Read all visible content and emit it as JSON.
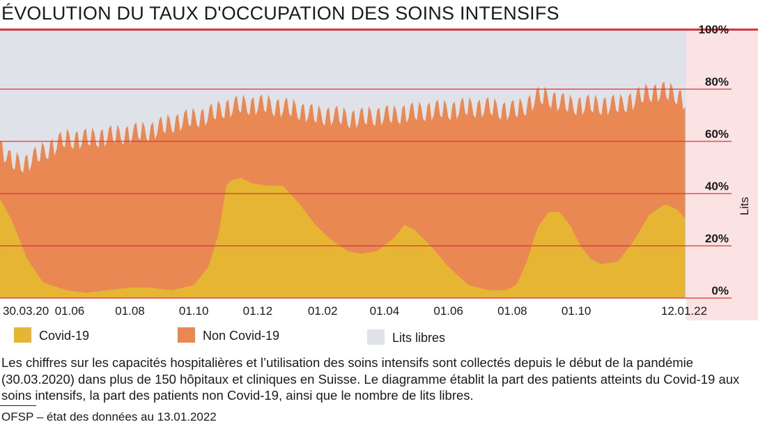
{
  "title": "ÉVOLUTION DU TAUX D'OCCUPATION DES SOINS INTENSIFS",
  "colors": {
    "accent_red": "#d9333c",
    "covid": "#e6b533",
    "non_covid": "#ea8854",
    "free_beds": "#dfe3e9",
    "panel_bg": "#fbe3e4"
  },
  "legend": [
    {
      "label": "Covid-19",
      "color": "#e6b533"
    },
    {
      "label": "Non Covid-19",
      "color": "#ea8854"
    },
    {
      "label": "Lits libres",
      "color": "#dfe3e9"
    }
  ],
  "caption": "Les chiffres sur les capacités hospitalières et l’utilisation des soins intensifs sont collectés depuis le début de la pandémie (30.03.2020) dans plus de 150 hôpitaux et cliniques en Suisse. Le diagramme établit la part des patients atteints du Covid-19 aux soins intensifs, la part des patients non Covid-19, ainsi que le nombre de lits libres.",
  "source": "OFSP – état des données au 13.01.2022",
  "chart_data": {
    "type": "area",
    "stacked": true,
    "ylabel": "Lits",
    "ylim": [
      0,
      100
    ],
    "yticks": [
      0,
      20,
      40,
      60,
      80,
      100
    ],
    "ytick_labels": [
      "0%",
      "20%",
      "40%",
      "60%",
      "80%",
      "100%"
    ],
    "gridlines_at": [
      20,
      40,
      60,
      80
    ],
    "xlim": [
      "2020-03-30",
      "2022-01-14"
    ],
    "xtick_labels": [
      {
        "date": "2020-03-30",
        "label": "30.03.20"
      },
      {
        "date": "2020-06-01",
        "label": "01.06"
      },
      {
        "date": "2020-08-01",
        "label": "01.08"
      },
      {
        "date": "2020-10-01",
        "label": "01.10"
      },
      {
        "date": "2020-12-01",
        "label": "01.12"
      },
      {
        "date": "2021-02-01",
        "label": "01.02"
      },
      {
        "date": "2021-04-01",
        "label": "01.04"
      },
      {
        "date": "2021-06-01",
        "label": "01.06"
      },
      {
        "date": "2021-08-01",
        "label": "01.08"
      },
      {
        "date": "2021-10-01",
        "label": "01.10"
      },
      {
        "date": "2022-01-12",
        "label": "12.01.22"
      }
    ],
    "series": [
      {
        "name": "Covid-19",
        "points": [
          [
            "2020-03-30",
            38
          ],
          [
            "2020-04-10",
            30
          ],
          [
            "2020-04-25",
            15
          ],
          [
            "2020-05-10",
            6
          ],
          [
            "2020-06-01",
            3
          ],
          [
            "2020-06-20",
            2
          ],
          [
            "2020-07-10",
            3
          ],
          [
            "2020-08-01",
            4
          ],
          [
            "2020-08-20",
            4
          ],
          [
            "2020-09-10",
            3
          ],
          [
            "2020-10-01",
            5
          ],
          [
            "2020-10-15",
            12
          ],
          [
            "2020-10-25",
            25
          ],
          [
            "2020-11-01",
            43
          ],
          [
            "2020-11-05",
            45
          ],
          [
            "2020-11-15",
            46
          ],
          [
            "2020-11-25",
            44
          ],
          [
            "2020-12-10",
            43
          ],
          [
            "2020-12-25",
            43
          ],
          [
            "2021-01-10",
            36
          ],
          [
            "2021-01-25",
            28
          ],
          [
            "2021-02-10",
            22
          ],
          [
            "2021-02-25",
            18
          ],
          [
            "2021-03-10",
            17
          ],
          [
            "2021-03-25",
            18
          ],
          [
            "2021-04-10",
            23
          ],
          [
            "2021-04-20",
            28
          ],
          [
            "2021-04-30",
            26
          ],
          [
            "2021-05-15",
            20
          ],
          [
            "2021-06-01",
            12
          ],
          [
            "2021-06-20",
            5
          ],
          [
            "2021-07-10",
            3
          ],
          [
            "2021-07-25",
            3
          ],
          [
            "2021-08-05",
            5
          ],
          [
            "2021-08-15",
            14
          ],
          [
            "2021-08-25",
            27
          ],
          [
            "2021-09-05",
            33
          ],
          [
            "2021-09-15",
            33
          ],
          [
            "2021-09-25",
            28
          ],
          [
            "2021-10-05",
            20
          ],
          [
            "2021-10-15",
            15
          ],
          [
            "2021-10-25",
            13
          ],
          [
            "2021-11-10",
            14
          ],
          [
            "2021-11-25",
            22
          ],
          [
            "2021-12-10",
            32
          ],
          [
            "2021-12-25",
            36
          ],
          [
            "2022-01-05",
            34
          ],
          [
            "2022-01-14",
            30
          ]
        ]
      },
      {
        "name": "Non Covid-19",
        "points": [
          [
            "2020-03-30",
            20
          ],
          [
            "2020-04-10",
            22
          ],
          [
            "2020-04-25",
            37
          ],
          [
            "2020-05-10",
            50
          ],
          [
            "2020-06-01",
            58
          ],
          [
            "2020-06-20",
            59
          ],
          [
            "2020-07-10",
            59
          ],
          [
            "2020-08-01",
            59
          ],
          [
            "2020-08-20",
            60
          ],
          [
            "2020-09-10",
            64
          ],
          [
            "2020-10-01",
            64
          ],
          [
            "2020-10-15",
            58
          ],
          [
            "2020-10-25",
            47
          ],
          [
            "2020-11-01",
            30
          ],
          [
            "2020-11-05",
            28
          ],
          [
            "2020-11-15",
            28
          ],
          [
            "2020-11-25",
            30
          ],
          [
            "2020-12-10",
            31
          ],
          [
            "2020-12-25",
            30
          ],
          [
            "2021-01-10",
            36
          ],
          [
            "2021-01-25",
            42
          ],
          [
            "2021-02-10",
            48
          ],
          [
            "2021-02-25",
            51
          ],
          [
            "2021-03-10",
            52
          ],
          [
            "2021-03-25",
            52
          ],
          [
            "2021-04-10",
            47
          ],
          [
            "2021-04-20",
            43
          ],
          [
            "2021-04-30",
            45
          ],
          [
            "2021-05-15",
            52
          ],
          [
            "2021-06-01",
            60
          ],
          [
            "2021-06-20",
            68
          ],
          [
            "2021-07-10",
            70
          ],
          [
            "2021-07-25",
            69
          ],
          [
            "2021-08-05",
            67
          ],
          [
            "2021-08-15",
            60
          ],
          [
            "2021-08-25",
            50
          ],
          [
            "2021-09-05",
            44
          ],
          [
            "2021-09-15",
            42
          ],
          [
            "2021-09-25",
            46
          ],
          [
            "2021-10-05",
            54
          ],
          [
            "2021-10-15",
            59
          ],
          [
            "2021-10-25",
            61
          ],
          [
            "2021-11-10",
            60
          ],
          [
            "2021-11-25",
            54
          ],
          [
            "2021-12-10",
            47
          ],
          [
            "2021-12-25",
            43
          ],
          [
            "2022-01-05",
            44
          ],
          [
            "2022-01-14",
            45
          ]
        ]
      },
      {
        "name": "Lits libres",
        "points": [
          [
            "2020-03-30",
            42
          ],
          [
            "2020-06-01",
            39
          ],
          [
            "2020-10-01",
            31
          ],
          [
            "2020-11-15",
            26
          ],
          [
            "2021-02-10",
            30
          ],
          [
            "2021-06-01",
            28
          ],
          [
            "2021-08-05",
            28
          ],
          [
            "2021-09-05",
            23
          ],
          [
            "2021-11-10",
            26
          ],
          [
            "2021-12-25",
            21
          ],
          [
            "2022-01-14",
            25
          ]
        ]
      }
    ]
  }
}
